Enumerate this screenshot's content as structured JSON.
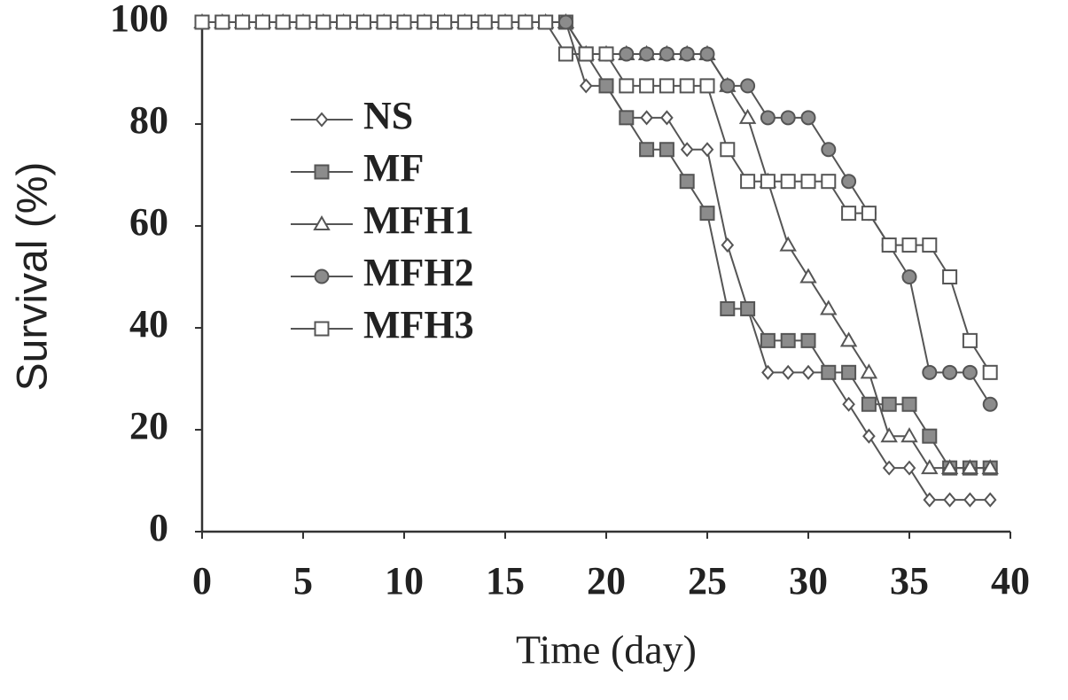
{
  "chart_data": {
    "type": "line",
    "x_label": "Time (day)",
    "y_label": "Survival (%)",
    "x": [
      0,
      1,
      2,
      3,
      4,
      5,
      6,
      7,
      8,
      9,
      10,
      11,
      12,
      13,
      14,
      15,
      16,
      17,
      18,
      19,
      20,
      21,
      22,
      23,
      24,
      25,
      26,
      27,
      28,
      29,
      30,
      31,
      32,
      33,
      34,
      35,
      36,
      37,
      38,
      39
    ],
    "xlim": [
      0,
      40
    ],
    "xticks": [
      0,
      5,
      10,
      15,
      20,
      25,
      30,
      35,
      40
    ],
    "ylim": [
      0,
      100
    ],
    "yticks": [
      0,
      20,
      40,
      60,
      80,
      100
    ],
    "grid": false,
    "legend": "upper left",
    "series": [
      {
        "name": "NS",
        "marker": "diamond",
        "color": "#ffffff",
        "values": [
          100,
          100,
          100,
          100,
          100,
          100,
          100,
          100,
          100,
          100,
          100,
          100,
          100,
          100,
          100,
          100,
          100,
          100,
          100,
          87.5,
          87.5,
          81.25,
          81.25,
          81.25,
          75,
          75,
          56.25,
          43.75,
          31.25,
          31.25,
          31.25,
          31.25,
          25,
          18.75,
          12.5,
          12.5,
          6.25,
          6.25,
          6.25,
          6.25
        ]
      },
      {
        "name": "MF",
        "marker": "square",
        "color": "#8c8c8c",
        "values": [
          100,
          100,
          100,
          100,
          100,
          100,
          100,
          100,
          100,
          100,
          100,
          100,
          100,
          100,
          100,
          100,
          100,
          100,
          100,
          93.75,
          87.5,
          81.25,
          75,
          75,
          68.75,
          62.5,
          43.75,
          43.75,
          37.5,
          37.5,
          37.5,
          31.25,
          31.25,
          25,
          25,
          25,
          18.75,
          12.5,
          12.5,
          12.5
        ]
      },
      {
        "name": "MFH1",
        "marker": "triangle",
        "color": "#ffffff",
        "values": [
          100,
          100,
          100,
          100,
          100,
          100,
          100,
          100,
          100,
          100,
          100,
          100,
          100,
          100,
          100,
          100,
          100,
          100,
          100,
          93.75,
          93.75,
          93.75,
          93.75,
          93.75,
          93.75,
          93.75,
          87.5,
          81.25,
          68.75,
          56.25,
          50,
          43.75,
          37.5,
          31.25,
          18.75,
          18.75,
          12.5,
          12.5,
          12.5,
          12.5
        ]
      },
      {
        "name": "MFH2",
        "marker": "circle",
        "color": "#8c8c8c",
        "values": [
          100,
          100,
          100,
          100,
          100,
          100,
          100,
          100,
          100,
          100,
          100,
          100,
          100,
          100,
          100,
          100,
          100,
          100,
          100,
          93.75,
          93.75,
          93.75,
          93.75,
          93.75,
          93.75,
          93.75,
          87.5,
          87.5,
          81.25,
          81.25,
          81.25,
          75,
          68.75,
          62.5,
          56.25,
          50,
          31.25,
          31.25,
          31.25,
          25
        ]
      },
      {
        "name": "MFH3",
        "marker": "square",
        "color": "#ffffff",
        "values": [
          100,
          100,
          100,
          100,
          100,
          100,
          100,
          100,
          100,
          100,
          100,
          100,
          100,
          100,
          100,
          100,
          100,
          100,
          93.75,
          93.75,
          93.75,
          87.5,
          87.5,
          87.5,
          87.5,
          87.5,
          75,
          68.75,
          68.75,
          68.75,
          68.75,
          68.75,
          62.5,
          62.5,
          56.25,
          56.25,
          56.25,
          50,
          37.5,
          31.25
        ]
      }
    ]
  }
}
